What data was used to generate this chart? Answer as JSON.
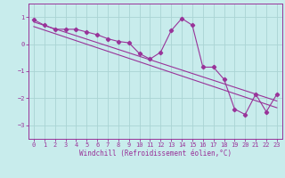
{
  "xlabel": "Windchill (Refroidissement éolien,°C)",
  "background_color": "#c8ecec",
  "grid_color": "#aad4d4",
  "line_color": "#993399",
  "spine_color": "#993399",
  "x_ticks": [
    0,
    1,
    2,
    3,
    4,
    5,
    6,
    7,
    8,
    9,
    10,
    11,
    12,
    13,
    14,
    15,
    16,
    17,
    18,
    19,
    20,
    21,
    22,
    23
  ],
  "xlim": [
    -0.5,
    23.5
  ],
  "ylim": [
    -3.5,
    1.5
  ],
  "yticks": [
    -3,
    -2,
    -1,
    0,
    1
  ],
  "main_data_x": [
    0,
    1,
    2,
    3,
    4,
    5,
    6,
    7,
    8,
    9,
    10,
    11,
    12,
    13,
    14,
    15,
    16,
    17,
    18,
    19,
    20,
    21,
    22,
    23
  ],
  "main_data_y": [
    0.9,
    0.7,
    0.55,
    0.55,
    0.55,
    0.45,
    0.35,
    0.2,
    0.1,
    0.05,
    -0.35,
    -0.55,
    -0.3,
    0.5,
    0.95,
    0.7,
    -0.85,
    -0.85,
    -1.3,
    -2.4,
    -2.6,
    -1.85,
    -2.5,
    -1.85
  ],
  "trend1_x": [
    0,
    23
  ],
  "trend1_y": [
    0.82,
    -2.1
  ],
  "trend2_x": [
    0,
    23
  ],
  "trend2_y": [
    0.65,
    -2.35
  ],
  "tick_fontsize": 5.0,
  "xlabel_fontsize": 5.5,
  "marker_size": 2.2,
  "linewidth": 0.8
}
